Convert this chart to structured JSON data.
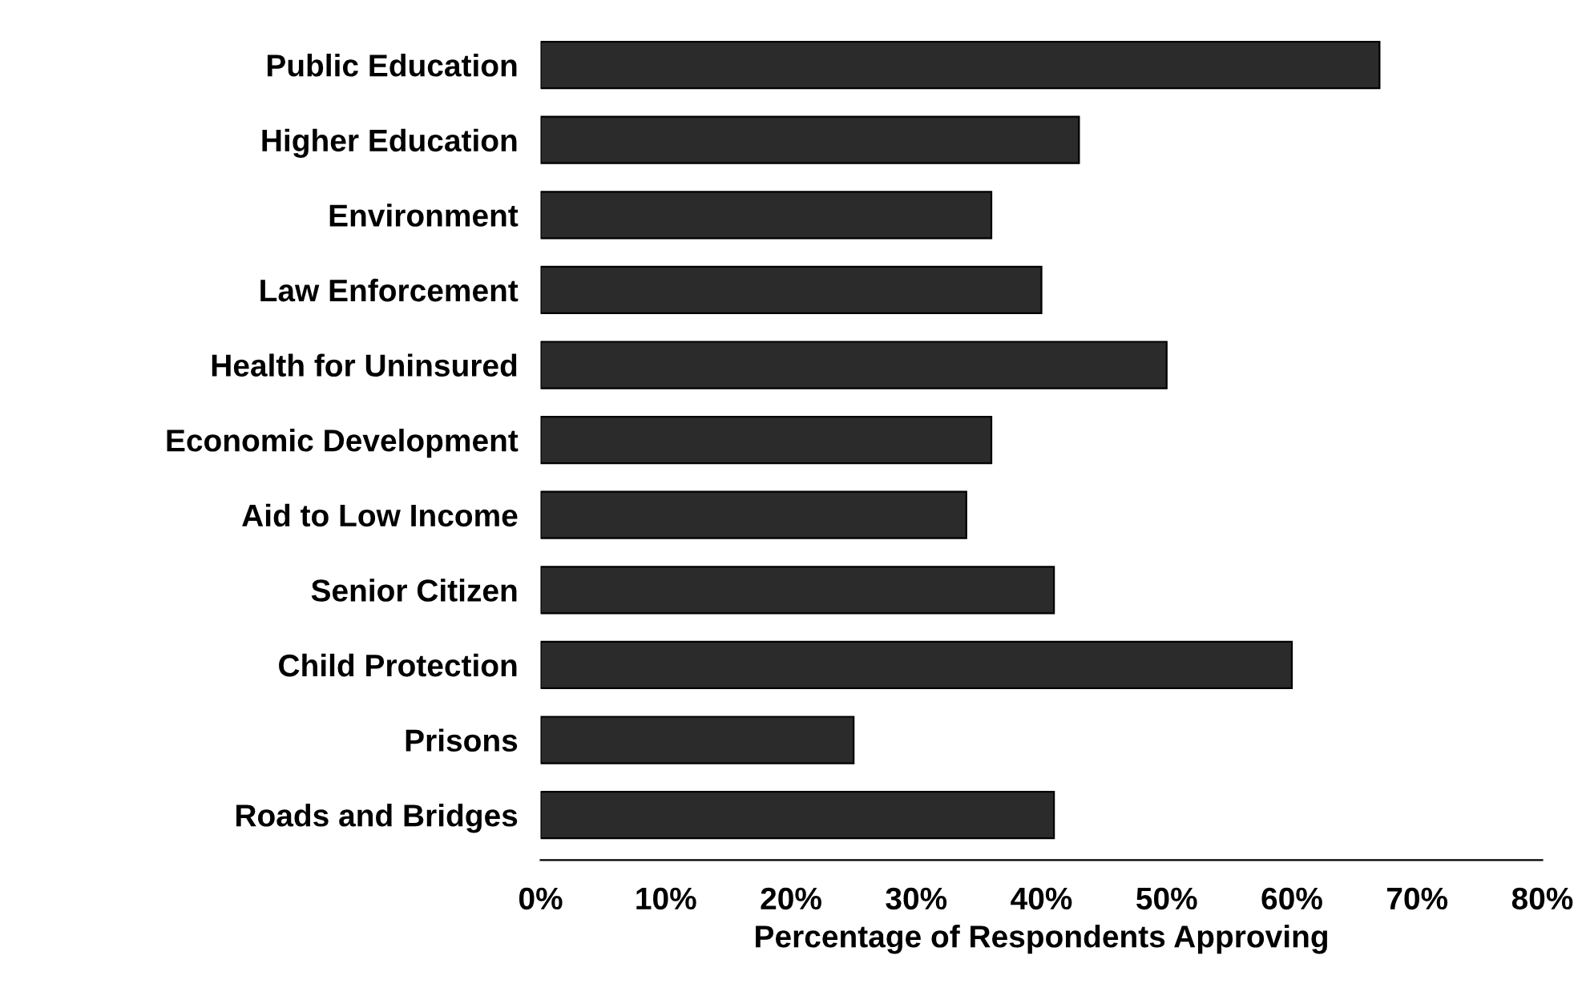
{
  "chart_data": {
    "type": "bar",
    "orientation": "horizontal",
    "xlabel": "Percentage of Respondents Approving",
    "categories": [
      "Public Education",
      "Higher Education",
      "Environment",
      "Law Enforcement",
      "Health for Uninsured",
      "Economic Development",
      "Aid to Low Income",
      "Senior Citizen",
      "Child Protection",
      "Prisons",
      "Roads and Bridges"
    ],
    "values": [
      67,
      43,
      36,
      40,
      50,
      36,
      34,
      41,
      60,
      25,
      41
    ],
    "color": "#2b2b2b",
    "xlim": [
      0,
      80
    ],
    "xticks": [
      {
        "value": 0,
        "label": "0%"
      },
      {
        "value": 10,
        "label": "10%"
      },
      {
        "value": 20,
        "label": "20%"
      },
      {
        "value": 30,
        "label": "30%"
      },
      {
        "value": 40,
        "label": "40%"
      },
      {
        "value": 50,
        "label": "50%"
      },
      {
        "value": 60,
        "label": "60%"
      },
      {
        "value": 70,
        "label": "70%"
      },
      {
        "value": 80,
        "label": "80%"
      }
    ],
    "grid": false,
    "legend": false
  }
}
